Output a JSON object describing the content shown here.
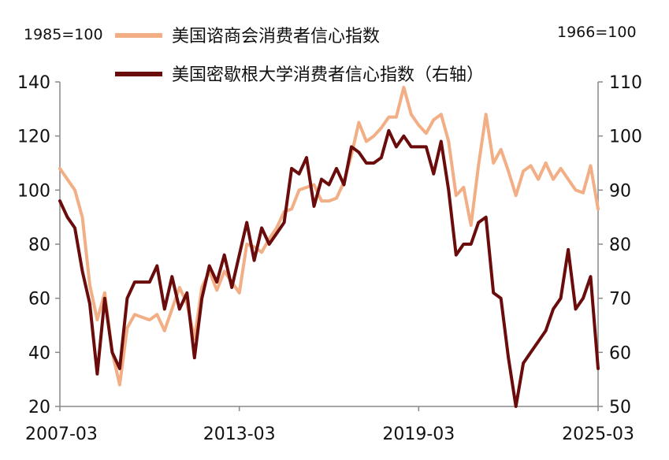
{
  "chart_data": {
    "type": "line",
    "left_unit_label": "1985=100",
    "right_unit_label": "1966=100",
    "x_range": [
      "2007-03",
      "2025-03"
    ],
    "x_ticks": [
      "2007-03",
      "2013-03",
      "2019-03",
      "2025-03"
    ],
    "y_left": {
      "ylim": [
        20,
        140
      ],
      "ticks": [
        "20",
        "40",
        "60",
        "80",
        "100",
        "120",
        "140"
      ]
    },
    "y_right": {
      "ylim": [
        50,
        110
      ],
      "ticks": [
        "50",
        "60",
        "70",
        "80",
        "90",
        "100",
        "110"
      ]
    },
    "legend_placement": "top-center",
    "grid": false,
    "series": [
      {
        "name": "美国谘商会消费者信心指数",
        "axis": "left",
        "color": "#F2AE84",
        "points": [
          [
            "2007-03",
            108
          ],
          [
            "2007-06",
            104
          ],
          [
            "2007-09",
            100
          ],
          [
            "2007-12",
            90
          ],
          [
            "2008-03",
            65
          ],
          [
            "2008-06",
            52
          ],
          [
            "2008-09",
            62
          ],
          [
            "2008-12",
            40
          ],
          [
            "2009-03",
            28
          ],
          [
            "2009-06",
            49
          ],
          [
            "2009-09",
            54
          ],
          [
            "2009-12",
            53
          ],
          [
            "2010-03",
            52
          ],
          [
            "2010-06",
            54
          ],
          [
            "2010-09",
            48
          ],
          [
            "2010-12",
            56
          ],
          [
            "2011-03",
            64
          ],
          [
            "2011-06",
            58
          ],
          [
            "2011-09",
            45
          ],
          [
            "2011-12",
            64
          ],
          [
            "2012-03",
            70
          ],
          [
            "2012-06",
            63
          ],
          [
            "2012-09",
            70
          ],
          [
            "2012-12",
            66
          ],
          [
            "2013-03",
            62
          ],
          [
            "2013-06",
            80
          ],
          [
            "2013-09",
            79
          ],
          [
            "2013-12",
            77
          ],
          [
            "2014-03",
            82
          ],
          [
            "2014-06",
            86
          ],
          [
            "2014-09",
            92
          ],
          [
            "2014-12",
            93
          ],
          [
            "2015-03",
            100
          ],
          [
            "2015-06",
            101
          ],
          [
            "2015-09",
            102
          ],
          [
            "2015-12",
            96
          ],
          [
            "2016-03",
            96
          ],
          [
            "2016-06",
            97
          ],
          [
            "2016-09",
            103
          ],
          [
            "2016-12",
            113
          ],
          [
            "2017-03",
            125
          ],
          [
            "2017-06",
            118
          ],
          [
            "2017-09",
            120
          ],
          [
            "2017-12",
            123
          ],
          [
            "2018-03",
            127
          ],
          [
            "2018-06",
            127
          ],
          [
            "2018-09",
            138
          ],
          [
            "2018-12",
            128
          ],
          [
            "2019-03",
            124
          ],
          [
            "2019-06",
            121
          ],
          [
            "2019-09",
            126
          ],
          [
            "2019-12",
            128
          ],
          [
            "2020-03",
            118
          ],
          [
            "2020-06",
            98
          ],
          [
            "2020-09",
            101
          ],
          [
            "2020-12",
            87
          ],
          [
            "2021-03",
            109
          ],
          [
            "2021-06",
            128
          ],
          [
            "2021-09",
            110
          ],
          [
            "2021-12",
            115
          ],
          [
            "2022-03",
            107
          ],
          [
            "2022-06",
            98
          ],
          [
            "2022-09",
            107
          ],
          [
            "2022-12",
            109
          ],
          [
            "2023-03",
            104
          ],
          [
            "2023-06",
            110
          ],
          [
            "2023-09",
            104
          ],
          [
            "2023-12",
            108
          ],
          [
            "2024-03",
            104
          ],
          [
            "2024-06",
            100
          ],
          [
            "2024-09",
            99
          ],
          [
            "2024-12",
            109
          ],
          [
            "2025-03",
            93
          ]
        ]
      },
      {
        "name": "美国密歇根大学消费者信心指数（右轴）",
        "axis": "right",
        "color": "#6B0C0C",
        "points": [
          [
            "2007-03",
            88
          ],
          [
            "2007-06",
            85
          ],
          [
            "2007-09",
            83
          ],
          [
            "2007-12",
            75
          ],
          [
            "2008-03",
            69
          ],
          [
            "2008-06",
            56
          ],
          [
            "2008-09",
            70
          ],
          [
            "2008-12",
            60
          ],
          [
            "2009-03",
            57
          ],
          [
            "2009-06",
            70
          ],
          [
            "2009-09",
            73
          ],
          [
            "2009-12",
            73
          ],
          [
            "2010-03",
            73
          ],
          [
            "2010-06",
            76
          ],
          [
            "2010-09",
            68
          ],
          [
            "2010-12",
            74
          ],
          [
            "2011-03",
            68
          ],
          [
            "2011-06",
            71
          ],
          [
            "2011-09",
            59
          ],
          [
            "2011-12",
            70
          ],
          [
            "2012-03",
            76
          ],
          [
            "2012-06",
            73
          ],
          [
            "2012-09",
            78
          ],
          [
            "2012-12",
            72
          ],
          [
            "2013-03",
            78
          ],
          [
            "2013-06",
            84
          ],
          [
            "2013-09",
            77
          ],
          [
            "2013-12",
            83
          ],
          [
            "2014-03",
            80
          ],
          [
            "2014-06",
            82
          ],
          [
            "2014-09",
            84
          ],
          [
            "2014-12",
            94
          ],
          [
            "2015-03",
            93
          ],
          [
            "2015-06",
            96
          ],
          [
            "2015-09",
            87
          ],
          [
            "2015-12",
            92
          ],
          [
            "2016-03",
            91
          ],
          [
            "2016-06",
            94
          ],
          [
            "2016-09",
            91
          ],
          [
            "2016-12",
            98
          ],
          [
            "2017-03",
            97
          ],
          [
            "2017-06",
            95
          ],
          [
            "2017-09",
            95
          ],
          [
            "2017-12",
            96
          ],
          [
            "2018-03",
            101
          ],
          [
            "2018-06",
            98
          ],
          [
            "2018-09",
            100
          ],
          [
            "2018-12",
            98
          ],
          [
            "2019-03",
            98
          ],
          [
            "2019-06",
            98
          ],
          [
            "2019-09",
            93
          ],
          [
            "2019-12",
            99
          ],
          [
            "2020-03",
            90
          ],
          [
            "2020-06",
            78
          ],
          [
            "2020-09",
            80
          ],
          [
            "2020-12",
            80
          ],
          [
            "2021-03",
            84
          ],
          [
            "2021-06",
            85
          ],
          [
            "2021-09",
            71
          ],
          [
            "2021-12",
            70
          ],
          [
            "2022-03",
            59
          ],
          [
            "2022-06",
            50
          ],
          [
            "2022-09",
            58
          ],
          [
            "2022-12",
            60
          ],
          [
            "2023-03",
            62
          ],
          [
            "2023-06",
            64
          ],
          [
            "2023-09",
            68
          ],
          [
            "2023-12",
            70
          ],
          [
            "2024-03",
            79
          ],
          [
            "2024-06",
            68
          ],
          [
            "2024-09",
            70
          ],
          [
            "2024-12",
            74
          ],
          [
            "2025-03",
            57
          ]
        ]
      }
    ]
  }
}
